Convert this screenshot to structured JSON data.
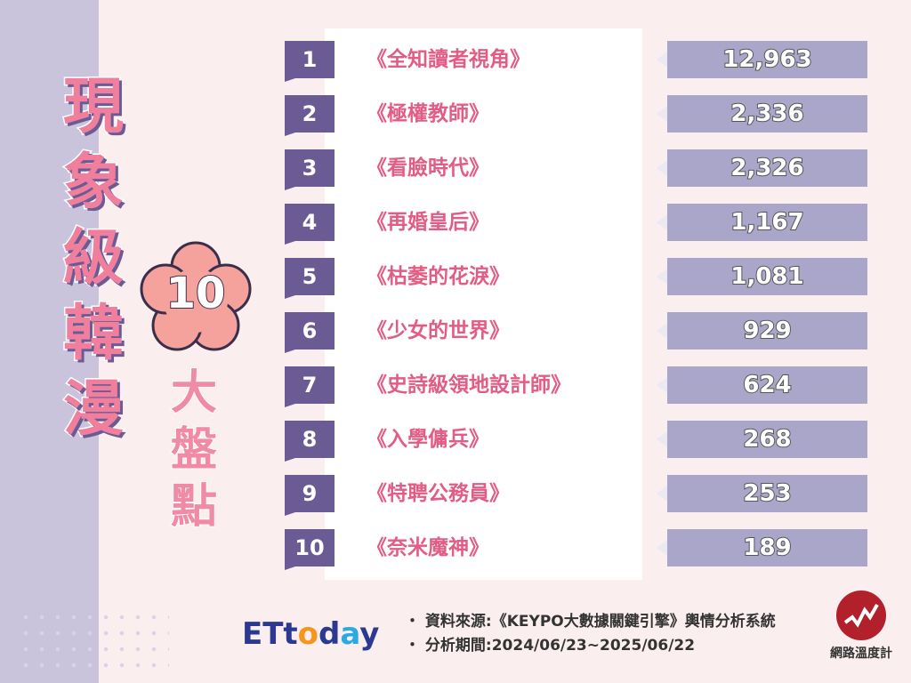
{
  "title_chars": [
    "現",
    "象",
    "級",
    "韓",
    "漫"
  ],
  "badge_number": "10",
  "subtitle_chars": [
    "大",
    "盤",
    "點"
  ],
  "chart_data": {
    "type": "table",
    "columns": [
      "rank",
      "title",
      "value"
    ],
    "rows": [
      {
        "rank": "1",
        "title": "《全知讀者視角》",
        "value": 12963,
        "display": "12,963"
      },
      {
        "rank": "2",
        "title": "《極權教師》",
        "value": 2336,
        "display": "2,336"
      },
      {
        "rank": "3",
        "title": "《看臉時代》",
        "value": 2326,
        "display": "2,326"
      },
      {
        "rank": "4",
        "title": "《再婚皇后》",
        "value": 1167,
        "display": "1,167"
      },
      {
        "rank": "5",
        "title": "《枯萎的花淚》",
        "value": 1081,
        "display": "1,081"
      },
      {
        "rank": "6",
        "title": "《少女的世界》",
        "value": 929,
        "display": "929"
      },
      {
        "rank": "7",
        "title": "《史詩級領地設計師》",
        "value": 624,
        "display": "624"
      },
      {
        "rank": "8",
        "title": "《入學傭兵》",
        "value": 268,
        "display": "268"
      },
      {
        "rank": "9",
        "title": "《特聘公務員》",
        "value": 253,
        "display": "253"
      },
      {
        "rank": "10",
        "title": "《奈米魔神》",
        "value": 189,
        "display": "189"
      }
    ]
  },
  "footer": {
    "logo": {
      "e": "ETt",
      "o": "o",
      "d": "d",
      "a": "a",
      "y": "y"
    },
    "source": "・ 資料來源:《KEYPO大數據關鍵引擎》輿情分析系統",
    "period": "・ 分析期間:2024/06/23~2025/06/22",
    "brand_name": "網路溫度計"
  },
  "colors": {
    "rank_tag": "#6b5b95",
    "value_box": "#a9a6c9",
    "title_text": "#e25d85",
    "badge_fill": "#f5a29c"
  }
}
